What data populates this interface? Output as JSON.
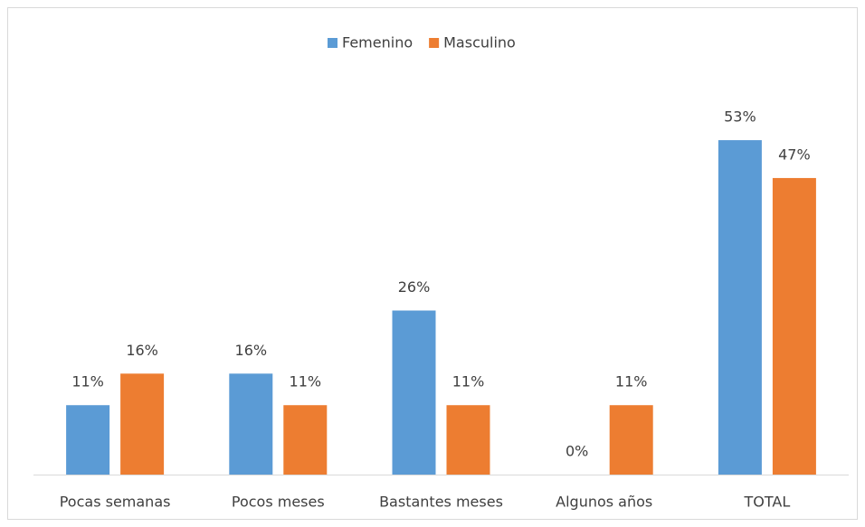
{
  "chart_data": {
    "type": "bar",
    "categories": [
      "Pocas semanas",
      "Pocos meses",
      "Bastantes meses",
      "Algunos años",
      "TOTAL"
    ],
    "series": [
      {
        "name": "Femenino",
        "color": "#5b9bd5",
        "values": [
          11,
          16,
          26,
          0,
          53
        ],
        "value_labels": [
          "11%",
          "16%",
          "26%",
          "0%",
          "53%"
        ]
      },
      {
        "name": "Masculino",
        "color": "#ed7d31",
        "values": [
          16,
          11,
          11,
          11,
          47
        ],
        "value_labels": [
          "16%",
          "11%",
          "11%",
          "11%",
          "47%"
        ]
      }
    ],
    "legend": "top"
  }
}
